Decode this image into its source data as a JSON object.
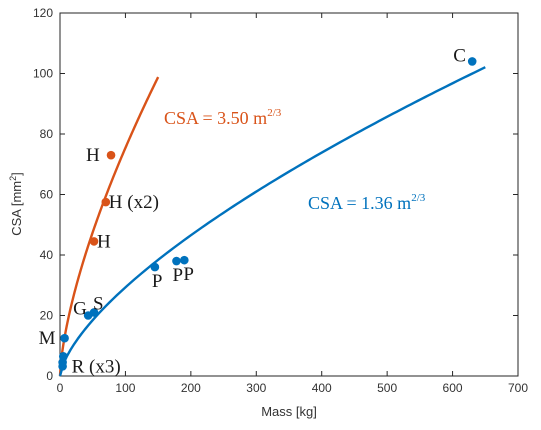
{
  "chart_data": {
    "type": "scatter",
    "title": "",
    "xlabel": "Mass [kg]",
    "ylabel_main": "CSA [mm",
    "ylabel_sup": "2",
    "ylabel_close": "]",
    "xlim": [
      0,
      700
    ],
    "ylim": [
      0,
      120
    ],
    "xticks": [
      0,
      100,
      200,
      300,
      400,
      500,
      600,
      700
    ],
    "yticks": [
      0,
      20,
      40,
      60,
      80,
      100,
      120
    ],
    "grid": false,
    "colors": {
      "orange": "#d95319",
      "blue": "#0072bd"
    },
    "curves": [
      {
        "name": "orange-fit",
        "coefficient": 3.5,
        "exponent": 0.6667,
        "x_range": [
          0,
          150
        ],
        "color": "#d95319",
        "annotation": {
          "main": "CSA = 3.50 m",
          "sup": "2/3"
        }
      },
      {
        "name": "blue-fit",
        "coefficient": 1.36,
        "exponent": 0.6667,
        "x_range": [
          0,
          650
        ],
        "color": "#0072bd",
        "annotation": {
          "main": "CSA = 1.36 m",
          "sup": "2/3"
        }
      }
    ],
    "series": [
      {
        "name": "",
        "color": "#d95319",
        "points": [
          {
            "x": 78,
            "y": 73,
            "label": "H"
          },
          {
            "x": 70,
            "y": 57.5,
            "label": "H (x2)"
          },
          {
            "x": 52,
            "y": 44.5,
            "label": "H"
          }
        ]
      },
      {
        "name": "",
        "color": "#0072bd",
        "points": [
          {
            "x": 630,
            "y": 104,
            "label": "C"
          },
          {
            "x": 145,
            "y": 36,
            "label": "P"
          },
          {
            "x": 178,
            "y": 38,
            "label": "P"
          },
          {
            "x": 190,
            "y": 38.3,
            "label": "P"
          },
          {
            "x": 43,
            "y": 20,
            "label": "G"
          },
          {
            "x": 52,
            "y": 21,
            "label": "S"
          },
          {
            "x": 7,
            "y": 12.5,
            "label": "M"
          },
          {
            "x": 5,
            "y": 6.5,
            "label": ""
          },
          {
            "x": 4,
            "y": 4.5,
            "label": ""
          },
          {
            "x": 4,
            "y": 3.2,
            "label": "R (x3)"
          }
        ]
      }
    ]
  }
}
